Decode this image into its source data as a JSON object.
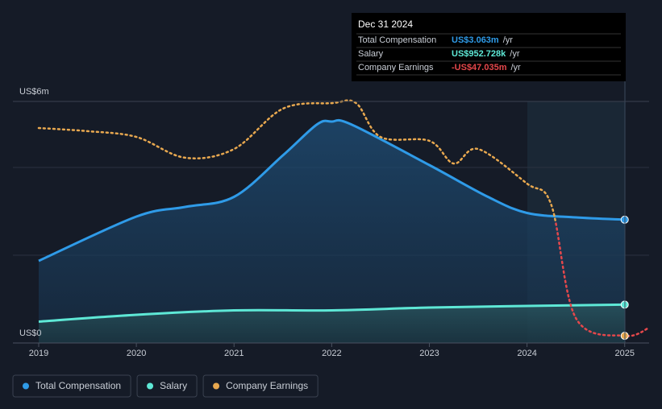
{
  "chart_data": {
    "type": "line",
    "xlim": [
      2019,
      2025.25
    ],
    "xticks": [
      2019,
      2020,
      2021,
      2022,
      2023,
      2024,
      2025
    ],
    "ylim": [
      0,
      6
    ],
    "yticks": [
      {
        "value": 0,
        "label": "US$0"
      },
      {
        "value": 6,
        "label": "US$6m"
      }
    ],
    "y2lim": [
      -50,
      50
    ],
    "series": [
      {
        "name": "Total Compensation",
        "color": "#2f9be8",
        "x": [
          2019,
          2020,
          2020.5,
          2021,
          2021.5,
          2021.85,
          2022,
          2022.2,
          2023,
          2023.6,
          2024,
          2024.5,
          2025
        ],
        "values": [
          2.04,
          3.14,
          3.38,
          3.63,
          4.66,
          5.43,
          5.5,
          5.43,
          4.42,
          3.63,
          3.23,
          3.12,
          3.063
        ]
      },
      {
        "name": "Salary",
        "color": "#5ee8d6",
        "x": [
          2019,
          2020,
          2021,
          2022,
          2023,
          2024,
          2025
        ],
        "values": [
          0.53,
          0.7,
          0.81,
          0.81,
          0.88,
          0.92,
          0.9527
        ]
      },
      {
        "name": "Company Earnings",
        "color": "#e8a84f",
        "negative_color": "#e5474b",
        "axis": "y2",
        "x": [
          2019,
          2019.5,
          2020,
          2020.5,
          2021,
          2021.5,
          2022,
          2022.25,
          2022.5,
          2023,
          2023.25,
          2023.5,
          2024,
          2024.25,
          2024.5,
          2025,
          2025.25
        ],
        "values": [
          39,
          37.7,
          35.3,
          26.7,
          30.3,
          47,
          49.3,
          49.3,
          35.3,
          33.7,
          24.3,
          30.3,
          16,
          7,
          -39.7,
          -47.035,
          -43.7
        ]
      }
    ],
    "tooltip": {
      "date": "Dec 31 2024",
      "unit": "/yr",
      "rows": [
        {
          "label": "Total Compensation",
          "value": "US$3.063m"
        },
        {
          "label": "Salary",
          "value": "US$952.728k"
        },
        {
          "label": "Company Earnings",
          "value": "-US$47.035m"
        }
      ]
    }
  }
}
